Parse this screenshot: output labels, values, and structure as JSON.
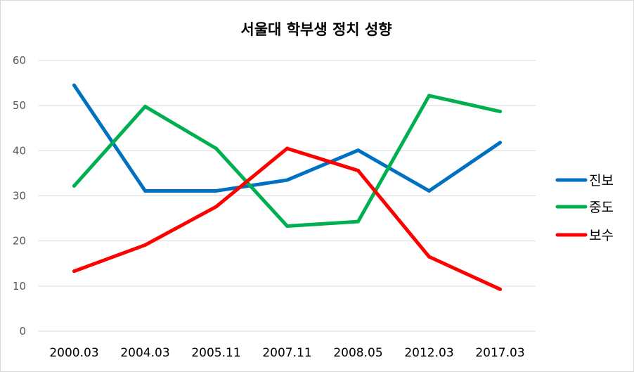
{
  "chart_data": {
    "type": "line",
    "title": "서울대 학부생 정치 성향",
    "categories": [
      "2000.03",
      "2004.03",
      "2005.11",
      "2007.11",
      "2008.05",
      "2012.03",
      "2017.03"
    ],
    "ylim": [
      0,
      60
    ],
    "yticks": [
      "0",
      "10",
      "20",
      "30",
      "40",
      "50",
      "60"
    ],
    "grid": true,
    "legend_position": "right",
    "series": [
      {
        "name": "진보",
        "color": "#0070c0",
        "values": [
          54.5,
          31.1,
          31.1,
          33.5,
          40.1,
          31.1,
          41.8
        ]
      },
      {
        "name": "중도",
        "color": "#00b050",
        "values": [
          32.2,
          49.8,
          40.5,
          23.3,
          24.3,
          52.2,
          48.7
        ]
      },
      {
        "name": "보수",
        "color": "#ff0000",
        "values": [
          13.3,
          19.1,
          27.6,
          40.5,
          35.6,
          16.5,
          9.3
        ]
      }
    ]
  }
}
